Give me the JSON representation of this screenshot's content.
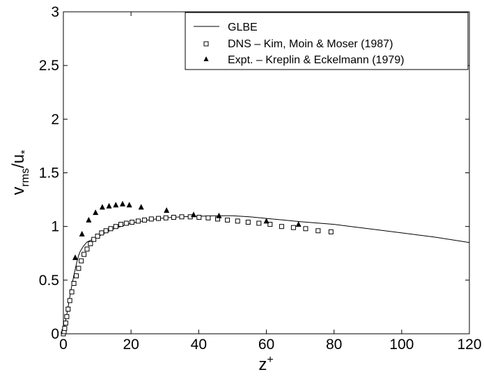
{
  "chart_data": {
    "type": "line",
    "xlabel": "z",
    "xlabel_sup": "+",
    "ylabel_parts": {
      "v": "v",
      "v_sub": "rms",
      "slash_u": "/u",
      "u_sub": "*"
    },
    "xlim": [
      0,
      120
    ],
    "ylim": [
      0,
      3
    ],
    "x_ticks": [
      0,
      20,
      40,
      60,
      80,
      100,
      120
    ],
    "x_tick_labels": [
      "0",
      "20",
      "40",
      "60",
      "80",
      "100",
      "120"
    ],
    "y_ticks": [
      0,
      0.5,
      1,
      1.5,
      2,
      2.5,
      3
    ],
    "y_tick_labels": [
      "0",
      "0.5",
      "1",
      "1.5",
      "2",
      "2.5",
      "3"
    ],
    "grid": false,
    "legend_position": "top-right",
    "series": [
      {
        "name": "GLBE",
        "style": "line",
        "color": "#000000",
        "x": [
          0,
          0.5,
          1,
          1.5,
          2,
          2.5,
          3,
          3.5,
          4,
          4.5,
          5,
          6,
          7,
          8,
          10,
          12,
          15,
          20,
          25,
          30,
          35,
          40,
          45,
          50,
          55,
          60,
          65,
          70,
          80,
          90,
          100,
          110,
          120
        ],
        "y": [
          0,
          0.09,
          0.18,
          0.27,
          0.36,
          0.45,
          0.53,
          0.6,
          0.67,
          0.73,
          0.77,
          0.82,
          0.855,
          0.87,
          0.9,
          0.935,
          0.98,
          1.03,
          1.06,
          1.08,
          1.09,
          1.095,
          1.1,
          1.1,
          1.09,
          1.075,
          1.06,
          1.045,
          1.02,
          0.98,
          0.94,
          0.9,
          0.85
        ]
      },
      {
        "name": "DNS – Kim, Moin & Moser (1987)",
        "style": "square",
        "color": "#000000",
        "x": [
          0,
          0.2,
          0.4,
          0.7,
          1.0,
          1.4,
          1.9,
          2.5,
          3.1,
          3.8,
          4.5,
          5.3,
          6.1,
          7.0,
          8.0,
          9.0,
          10.1,
          11.3,
          12.6,
          14.0,
          15.5,
          17.0,
          18.6,
          20.3,
          22.1,
          24.0,
          26.0,
          28.1,
          30.3,
          32.6,
          35.0,
          37.5,
          40.1,
          42.8,
          45.6,
          48.5,
          51.5,
          54.6,
          57.8,
          61.1,
          64.5,
          68.0,
          71.6,
          75.3,
          79.1
        ],
        "y": [
          0.0,
          0.02,
          0.05,
          0.1,
          0.16,
          0.23,
          0.31,
          0.39,
          0.47,
          0.54,
          0.61,
          0.68,
          0.74,
          0.79,
          0.84,
          0.88,
          0.91,
          0.94,
          0.96,
          0.98,
          1.0,
          1.02,
          1.03,
          1.04,
          1.05,
          1.06,
          1.07,
          1.075,
          1.08,
          1.085,
          1.09,
          1.09,
          1.085,
          1.08,
          1.07,
          1.06,
          1.05,
          1.04,
          1.03,
          1.02,
          1.0,
          0.99,
          0.98,
          0.96,
          0.95
        ]
      },
      {
        "name": "Expt. – Kreplin & Eckelmann (1979)",
        "style": "triangle",
        "color": "#000000",
        "x": [
          3.5,
          5.5,
          7.5,
          9.5,
          11.5,
          13.5,
          15.5,
          17.5,
          19.5,
          23,
          30.5,
          38.5,
          46,
          60,
          69.5
        ],
        "y": [
          0.71,
          0.93,
          1.06,
          1.13,
          1.18,
          1.19,
          1.2,
          1.21,
          1.2,
          1.18,
          1.15,
          1.11,
          1.1,
          1.05,
          1.02
        ]
      }
    ]
  }
}
